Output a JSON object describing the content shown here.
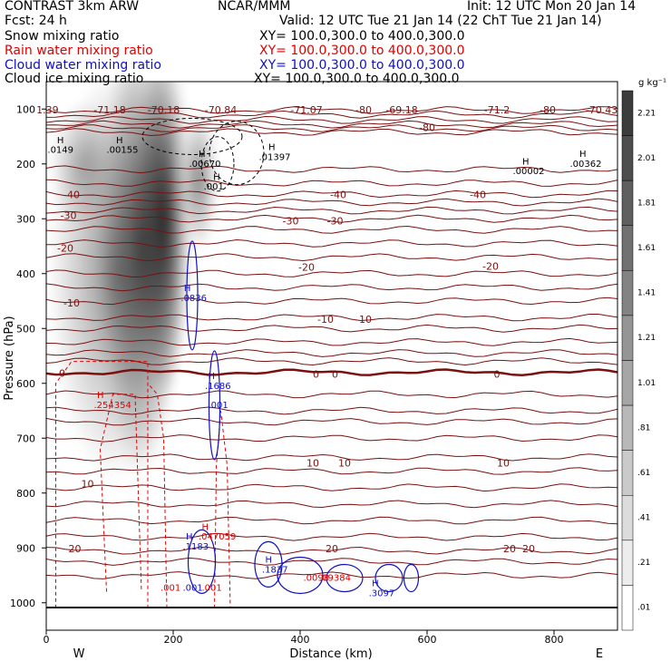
{
  "header": {
    "model": "CONTRAST  3km ARW",
    "org": "NCAR/MMM",
    "init": "Init: 12 UTC Mon 20 Jan 14",
    "fcst": "Fcst:    24 h",
    "valid": "Valid: 12 UTC Tue 21 Jan 14 (22 ChT Tue 21 Jan 14)"
  },
  "fields": [
    {
      "name": "Snow mixing ratio",
      "xy": "XY=  100.0,300.0  to  400.0,300.0",
      "color": "#000000"
    },
    {
      "name": "Rain water mixing ratio",
      "xy": "XY=  100.0,300.0  to  400.0,300.0",
      "color": "#e00000"
    },
    {
      "name": "Cloud water mixing ratio",
      "xy": "XY=  100.0,300.0  to  400.0,300.0",
      "color": "#1010c0"
    },
    {
      "name": "Cloud ice mixing ratio",
      "xy": "XY=  100.0,300.0  to  400.0,300.0",
      "color": "#000000"
    }
  ],
  "chart_data": {
    "type": "cross-section",
    "xlabel": "Distance (km)",
    "ylabel": "Pressure (hPa)",
    "xlim": [
      0,
      900
    ],
    "ylim": [
      1050,
      50
    ],
    "x_ticks": [
      0,
      200,
      400,
      600,
      800
    ],
    "y_ticks": [
      100,
      200,
      300,
      400,
      500,
      600,
      700,
      800,
      900,
      1000
    ],
    "x_end_labels": {
      "left": "W",
      "right": "E"
    },
    "colorbar": {
      "unit": "g kg⁻¹",
      "labels": [
        "2.21",
        "2.01",
        "1.81",
        "1.61",
        "1.41",
        "1.21",
        "1.01",
        ".81",
        ".61",
        ".41",
        ".21",
        ".01"
      ]
    },
    "temperature_labels": [
      "-80",
      "-40",
      "-30",
      "-20",
      "-10",
      "0",
      "10",
      "20"
    ],
    "top_labels": [
      "1.39",
      "-71.18",
      "-70.18",
      "-70.84",
      "-71.07",
      "-80",
      "-69.18",
      "-71.2",
      "-80",
      "-70.43"
    ],
    "snow_max_labels": [
      ".0149",
      ".00155",
      ".00670",
      ".01397",
      ".001",
      ".00002",
      ".00362"
    ],
    "rain_labels": [
      ".254354",
      ".047059",
      ".001",
      ".001",
      ".0098",
      ".09384"
    ],
    "cloud_water_labels": [
      ".0836",
      ".1686",
      ".001",
      ".1183",
      ".001",
      ".1837",
      ".3097"
    ],
    "grid": false
  }
}
